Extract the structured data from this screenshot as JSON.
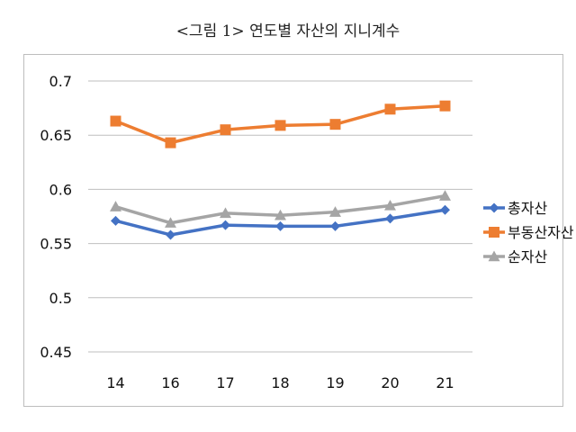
{
  "chart_data": {
    "type": "line",
    "title": "<그림 1> 연도별 자산의 지니계수",
    "xlabel": "",
    "ylabel": "",
    "categories": [
      "14",
      "16",
      "17",
      "18",
      "19",
      "20",
      "21"
    ],
    "ylim": [
      0.45,
      0.7
    ],
    "yticks": [
      "0.7",
      "0.65",
      "0.6",
      "0.55",
      "0.5",
      "0.45"
    ],
    "grid": true,
    "legend_position": "right",
    "series": [
      {
        "name": "총자산",
        "color": "#4472C4",
        "marker": "diamond",
        "values": [
          0.571,
          0.558,
          0.567,
          0.566,
          0.566,
          0.573,
          0.581
        ]
      },
      {
        "name": "부동산자산",
        "color": "#ED7D31",
        "marker": "square",
        "values": [
          0.663,
          0.643,
          0.655,
          0.659,
          0.66,
          0.674,
          0.677
        ]
      },
      {
        "name": "순자산",
        "color": "#A5A5A5",
        "marker": "triangle",
        "values": [
          0.584,
          0.569,
          0.578,
          0.576,
          0.579,
          0.585,
          0.594
        ]
      }
    ]
  }
}
